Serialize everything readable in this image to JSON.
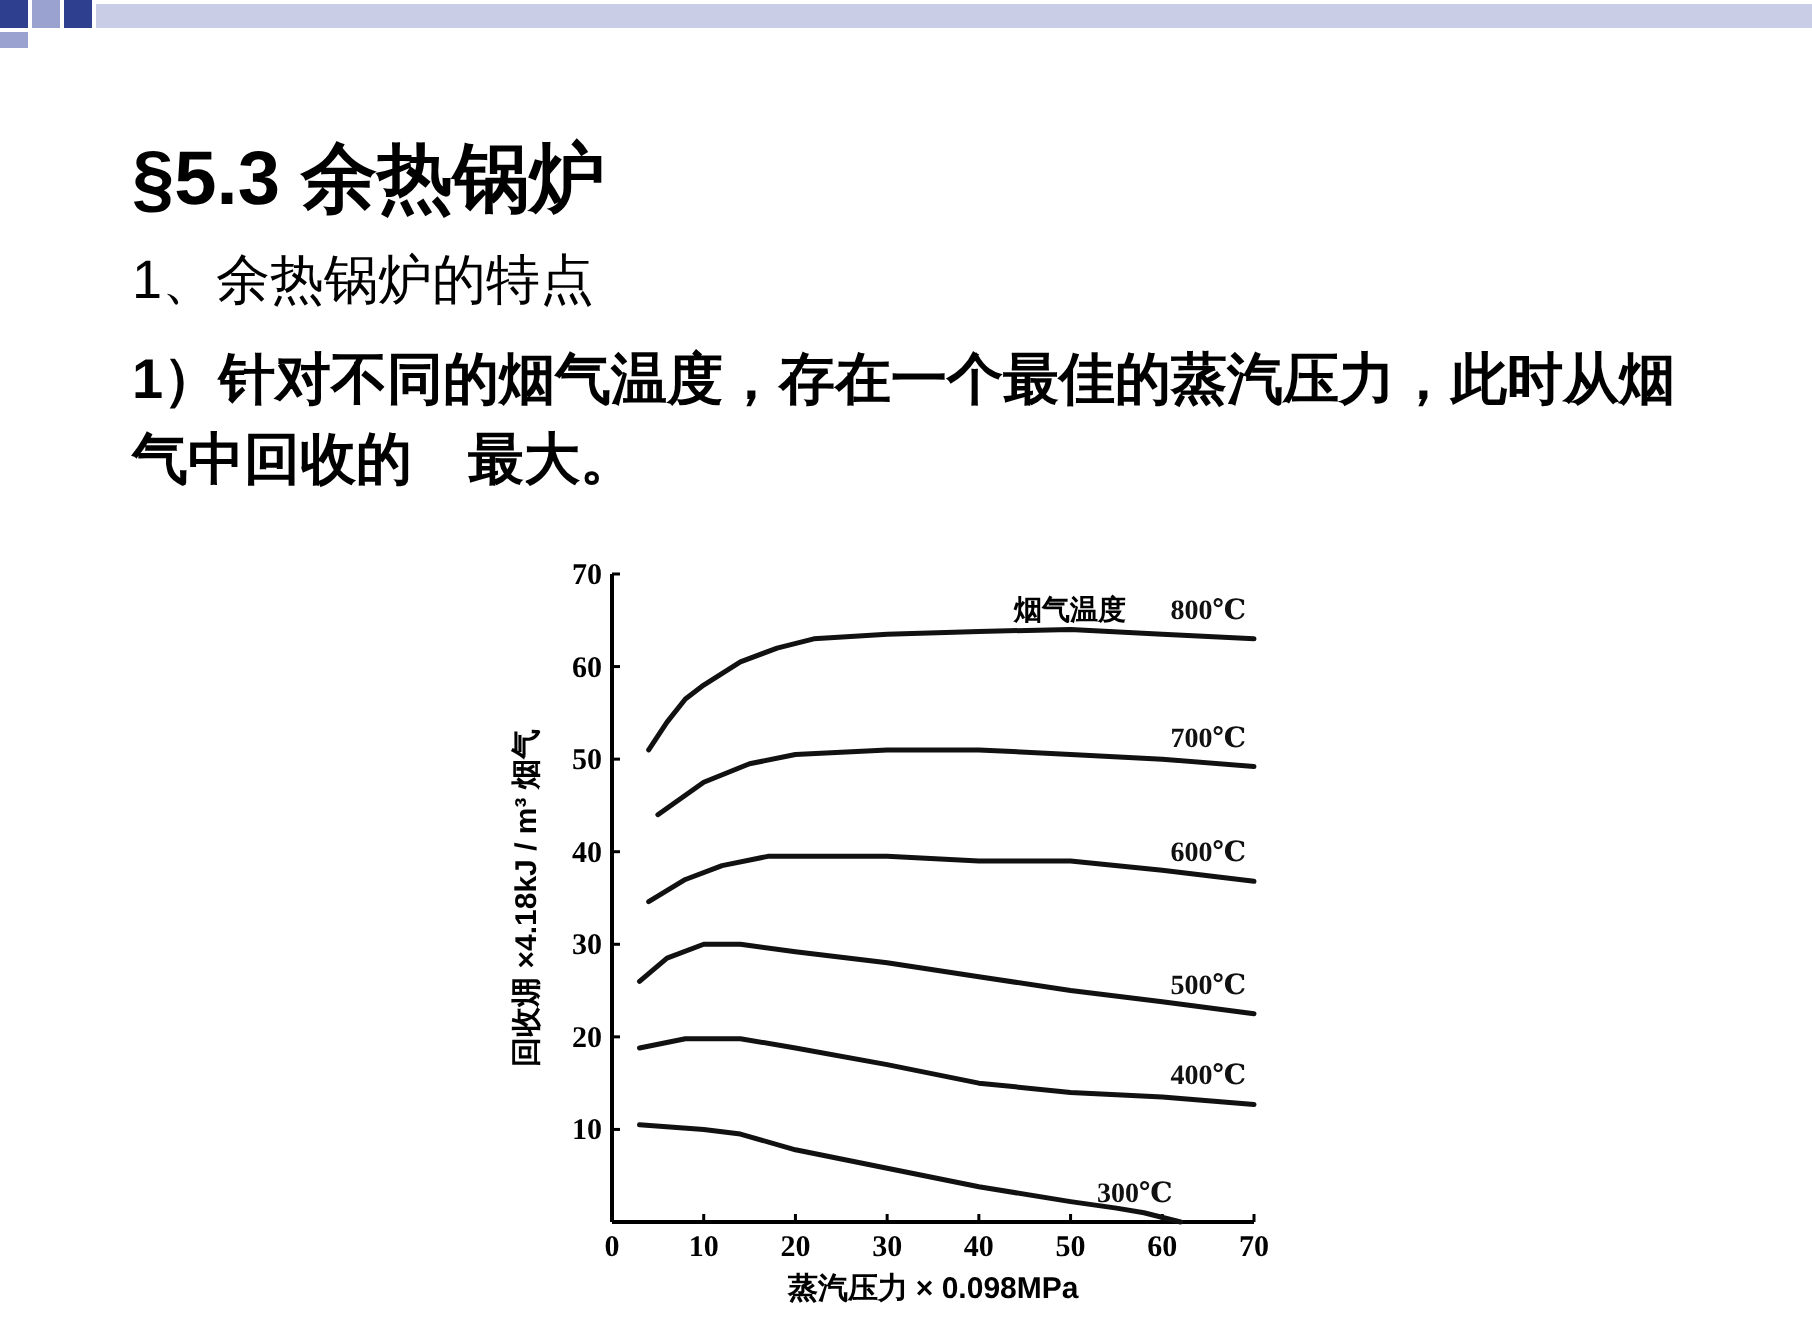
{
  "chart_data": {
    "type": "line",
    "title": "§5.3 余热锅炉",
    "subtitle": "1、余热锅炉的特点",
    "annotations": [
      "1）针对不同的烟气温度，存在一个最佳的蒸汽压力，此时从烟气中回收的　最大。"
    ],
    "xlabel": "蒸汽压力 × 0.098MPa",
    "ylabel": "回收㶲 ×4.18kJ / m³ 烟气",
    "legend_title": "烟气温度",
    "xlim": [
      0,
      70
    ],
    "ylim": [
      0,
      70
    ],
    "xticks": [
      0,
      10,
      20,
      30,
      40,
      50,
      60,
      70
    ],
    "yticks": [
      10,
      20,
      30,
      40,
      50,
      60,
      70
    ],
    "grid": false,
    "marker": "none",
    "line_style": "solid",
    "series": [
      {
        "name": "800℃",
        "color": "#111111",
        "x": [
          4,
          6,
          8,
          10,
          14,
          18,
          22,
          30,
          40,
          50,
          60,
          70
        ],
        "values": [
          51,
          54,
          56.5,
          58,
          60.5,
          62,
          63,
          63.5,
          63.8,
          64,
          63.5,
          63
        ]
      },
      {
        "name": "700℃",
        "color": "#111111",
        "x": [
          5,
          10,
          15,
          20,
          30,
          40,
          50,
          60,
          70
        ],
        "values": [
          44,
          47.5,
          49.5,
          50.5,
          51,
          51,
          50.5,
          50,
          49.2
        ]
      },
      {
        "name": "600℃",
        "color": "#111111",
        "x": [
          4,
          8,
          12,
          17,
          30,
          40,
          50,
          60,
          70
        ],
        "values": [
          34.6,
          37,
          38.5,
          39.5,
          39.5,
          39,
          39,
          38,
          36.8
        ]
      },
      {
        "name": "500℃",
        "color": "#111111",
        "x": [
          3,
          6,
          10,
          14,
          20,
          30,
          40,
          50,
          60,
          70
        ],
        "values": [
          26,
          28.5,
          30,
          30,
          29.2,
          28,
          26.5,
          25,
          23.8,
          22.5
        ]
      },
      {
        "name": "400℃",
        "color": "#111111",
        "x": [
          3,
          8,
          14,
          20,
          30,
          40,
          50,
          60,
          70
        ],
        "values": [
          18.8,
          19.8,
          19.8,
          18.8,
          17,
          15,
          14,
          13.5,
          12.7
        ]
      },
      {
        "name": "300℃",
        "color": "#111111",
        "x": [
          3,
          10,
          14,
          20,
          30,
          40,
          50,
          55,
          58,
          62
        ],
        "values": [
          10.5,
          10,
          9.5,
          7.8,
          5.8,
          3.8,
          2.2,
          1.5,
          1,
          0
        ]
      }
    ]
  }
}
